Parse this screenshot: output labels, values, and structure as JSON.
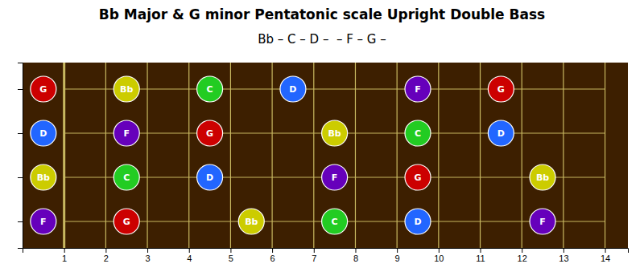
{
  "chart_data": {
    "type": "scatter",
    "title": "Bb Major & G minor Pentatonic scale Upright Double Bass",
    "subtitle": "Bb – C – D –  – F – G –",
    "x": [
      0.5,
      0.5,
      0.5,
      0.5,
      2.5,
      2.5,
      2.5,
      2.5,
      4.5,
      4.5,
      4.5,
      6.5,
      7.5,
      7.5,
      5.5,
      7.5,
      9.5,
      9.5,
      9.5,
      9.5,
      11.5,
      11.5,
      12.5,
      12.5
    ],
    "y": [
      3,
      2,
      1,
      0,
      3,
      2,
      1,
      0,
      3,
      2,
      1,
      3,
      2,
      1,
      0,
      0,
      3,
      2,
      1,
      0,
      3,
      2,
      1,
      0
    ],
    "labels": [
      "G",
      "D",
      "Bb",
      "F",
      "Bb",
      "F",
      "C",
      "G",
      "C",
      "G",
      "D",
      "D",
      "Bb",
      "F",
      "Bb",
      "C",
      "F",
      "C",
      "G",
      "D",
      "G",
      "D",
      "Bb",
      "F"
    ],
    "colors": [
      "#cc0000",
      "#2266ff",
      "#cccc00",
      "#6600bb",
      "#cccc00",
      "#6600bb",
      "#22cc22",
      "#cc0000",
      "#22cc22",
      "#cc0000",
      "#2266ff",
      "#2266ff",
      "#cccc00",
      "#6600bb",
      "#cccc00",
      "#22cc22",
      "#6600bb",
      "#22cc22",
      "#cc0000",
      "#2266ff",
      "#cc0000",
      "#2266ff",
      "#cccc00",
      "#6600bb"
    ],
    "xlim": [
      0.0,
      14.55
    ],
    "xticks": [
      1,
      2,
      3,
      4,
      5,
      6,
      7,
      8,
      9,
      10,
      11,
      12,
      13,
      14
    ],
    "ylim": [
      -0.6,
      3.6
    ],
    "yticks": [
      0,
      1,
      2,
      3
    ],
    "grid": true,
    "data_labels": true,
    "tick_labels": "x"
  }
}
